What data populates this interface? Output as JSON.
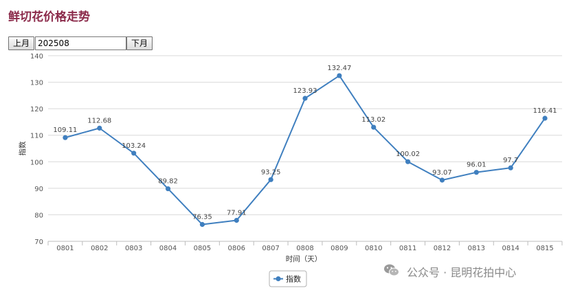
{
  "page": {
    "title": "鲜切花价格走势",
    "prev_label": "上月",
    "next_label": "下月",
    "month_value": "202508",
    "watermark_text": "公众号 · 昆明花拍中心"
  },
  "colors": {
    "title": "#8b2a4a",
    "series": "#3f7fbf",
    "grid": "#d9d9d9",
    "axis_text": "#555555",
    "watermark": "#8a8a8a"
  },
  "chart_data": {
    "type": "line",
    "xlabel": "时间（天）",
    "ylabel": "指数",
    "ylim": [
      70,
      140
    ],
    "yticks": [
      70,
      80,
      90,
      100,
      110,
      120,
      130,
      140
    ],
    "categories": [
      "0801",
      "0802",
      "0803",
      "0804",
      "0805",
      "0806",
      "0807",
      "0808",
      "0809",
      "0810",
      "0811",
      "0812",
      "0813",
      "0814",
      "0815"
    ],
    "series": [
      {
        "name": "指数",
        "values": [
          109.11,
          112.68,
          103.24,
          89.82,
          76.35,
          77.91,
          93.25,
          123.93,
          132.47,
          113.02,
          100.02,
          93.07,
          96.01,
          97.7,
          116.41
        ],
        "labels": [
          "109.11",
          "112.68",
          "103.24",
          "89.82",
          "76.35",
          "77.91",
          "93.25",
          "123.93",
          "132.47",
          "113.02",
          "100.02",
          "93.07",
          "96.01",
          "97.7",
          "116.41"
        ]
      }
    ],
    "grid": true,
    "legend_position": "bottom-center"
  }
}
